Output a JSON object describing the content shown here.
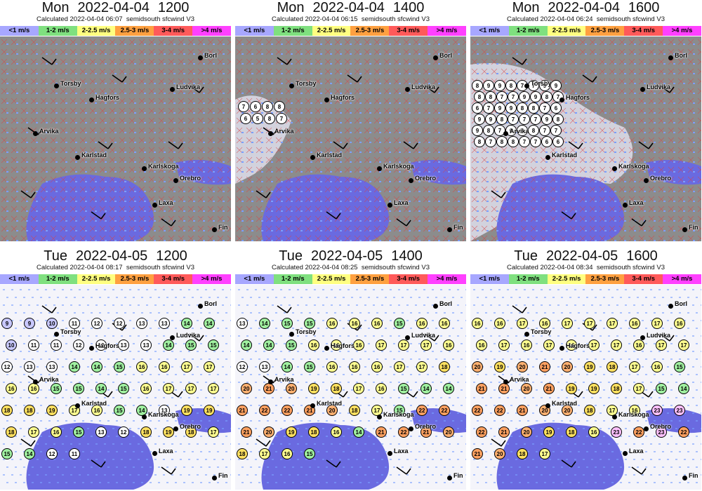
{
  "legend": [
    {
      "label": "<1 m/s",
      "color": "#a7a7ff"
    },
    {
      "label": "1-2 m/s",
      "color": "#7fe07f"
    },
    {
      "label": "2-2.5 m/s",
      "color": "#ffff80"
    },
    {
      "label": "2.5-3 m/s",
      "color": "#ffa040"
    },
    {
      "label": "3-4 m/s",
      "color": "#ff5a5a"
    },
    {
      "label": ">4 m/s",
      "color": "#ff40ff"
    }
  ],
  "colors": {
    "land_dry": "#8c8c8c",
    "land_cloud": "#d9d9e6",
    "land_snow": "#f4f4fa",
    "water": "#6a6ae0",
    "cross": "#e04040",
    "speck": "#7aa0ff"
  },
  "cities": [
    "Torsby",
    "Hagfors",
    "Ludvika",
    "Arvika",
    "Karlstad",
    "Karlskoga",
    "Orebro",
    "Laxa",
    "Borl",
    "Fin"
  ],
  "panels": [
    {
      "day": "Mon",
      "date": "2022-04-04",
      "time": "1200",
      "calc": "Calculated 2022-04-04 06:07  semidsouth sfcwind V3",
      "style": "dry",
      "circles": []
    },
    {
      "day": "Mon",
      "date": "2022-04-04",
      "time": "1400",
      "calc": "Calculated 2022-04-04 06:15  semidsouth sfcwind V3",
      "style": "dry",
      "circles": [
        "7",
        "6",
        "8",
        "8",
        "6",
        "5",
        "8",
        "7"
      ]
    },
    {
      "day": "Mon",
      "date": "2022-04-04",
      "time": "1600",
      "calc": "Calculated 2022-04-04 06:24  semidsouth sfcwind V3",
      "style": "dry",
      "circles": [
        "8",
        "9",
        "9",
        "8",
        "7",
        "7",
        "9",
        "9",
        "8",
        "8",
        "7",
        "7",
        "9",
        "9",
        "8",
        "7",
        "6",
        "7",
        "9",
        "9",
        "8",
        "8",
        "7",
        "6",
        "9",
        "9",
        "8",
        "7",
        "7",
        "7",
        "9",
        "8",
        "9",
        "8",
        "7",
        "6",
        "9",
        "8",
        "7",
        "7",
        "8",
        "7",
        "8",
        "8",
        "7",
        "7",
        "6",
        "6"
      ]
    },
    {
      "day": "Tue",
      "date": "2022-04-05",
      "time": "1200",
      "calc": "Calculated 2022-04-04 08:17  semidsouth sfcwind V3",
      "style": "snow",
      "circles": [
        "9",
        "9",
        "10",
        "11",
        "12",
        "12",
        "13",
        "13",
        "14",
        "14",
        "10",
        "11",
        "11",
        "12",
        "12",
        "13",
        "13",
        "14",
        "15",
        "15",
        "12",
        "13",
        "13",
        "14",
        "14",
        "15",
        "16",
        "16",
        "17",
        "17",
        "16",
        "16",
        "15",
        "15",
        "14",
        "15",
        "16",
        "17",
        "17",
        "17",
        "18",
        "18",
        "19",
        "17",
        "16",
        "15",
        "14",
        "13",
        "19",
        "19",
        "18",
        "17",
        "16",
        "15",
        "13",
        "12",
        "18",
        "19",
        "18",
        "17",
        "15",
        "14",
        "12",
        "11"
      ]
    },
    {
      "day": "Tue",
      "date": "2022-04-05",
      "time": "1400",
      "calc": "Calculated 2022-04-04 08:25  semidsouth sfcwind V3",
      "style": "snow",
      "circles": [
        "13",
        "14",
        "15",
        "15",
        "16",
        "16",
        "16",
        "15",
        "16",
        "16",
        "14",
        "14",
        "15",
        "16",
        "16",
        "16",
        "17",
        "17",
        "17",
        "16",
        "12",
        "13",
        "14",
        "15",
        "16",
        "16",
        "16",
        "17",
        "17",
        "18",
        "20",
        "21",
        "20",
        "19",
        "18",
        "17",
        "16",
        "15",
        "14",
        "14",
        "21",
        "22",
        "22",
        "21",
        "20",
        "18",
        "17",
        "15",
        "22",
        "22",
        "21",
        "20",
        "19",
        "18",
        "16",
        "14",
        "21",
        "22",
        "21",
        "20",
        "18",
        "17",
        "16",
        "15"
      ]
    },
    {
      "day": "Tue",
      "date": "2022-04-05",
      "time": "1600",
      "calc": "Calculated 2022-04-04 08:34  semidsouth sfcwind V3",
      "style": "snow",
      "circles": [
        "16",
        "16",
        "17",
        "16",
        "17",
        "17",
        "17",
        "16",
        "17",
        "16",
        "16",
        "17",
        "16",
        "17",
        "16",
        "17",
        "17",
        "16",
        "17",
        "17",
        "20",
        "19",
        "20",
        "21",
        "20",
        "19",
        "18",
        "17",
        "16",
        "15",
        "21",
        "21",
        "20",
        "21",
        "19",
        "19",
        "18",
        "17",
        "15",
        "14",
        "22",
        "22",
        "21",
        "20",
        "20",
        "18",
        "17",
        "16",
        "23",
        "23",
        "22",
        "21",
        "20",
        "19",
        "18",
        "16",
        "23",
        "22",
        "23",
        "22",
        "21",
        "20",
        "18",
        "17"
      ]
    }
  ]
}
